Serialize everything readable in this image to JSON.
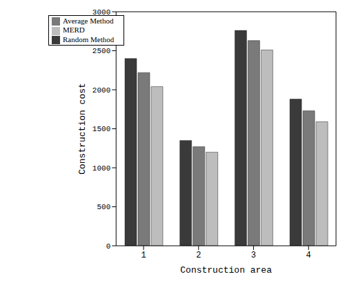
{
  "chart_data": {
    "type": "bar",
    "x_label": "Construction area",
    "y_label": "Construction cost",
    "categories": [
      "1",
      "2",
      "3",
      "4"
    ],
    "series": [
      {
        "name": "Random Method",
        "color": "#3a3a3a",
        "values": [
          2400,
          1350,
          2760,
          1880
        ]
      },
      {
        "name": "Average Method",
        "color": "#7a7a7a",
        "values": [
          2220,
          1270,
          2630,
          1730
        ]
      },
      {
        "name": "MERD",
        "color": "#bdbdbd",
        "values": [
          2040,
          1200,
          2510,
          1590
        ]
      }
    ],
    "ylim": [
      0,
      3000
    ],
    "yticks": [
      0,
      500,
      1000,
      1500,
      2000,
      2500,
      3000
    ],
    "legend": "upper left",
    "grid": false
  }
}
